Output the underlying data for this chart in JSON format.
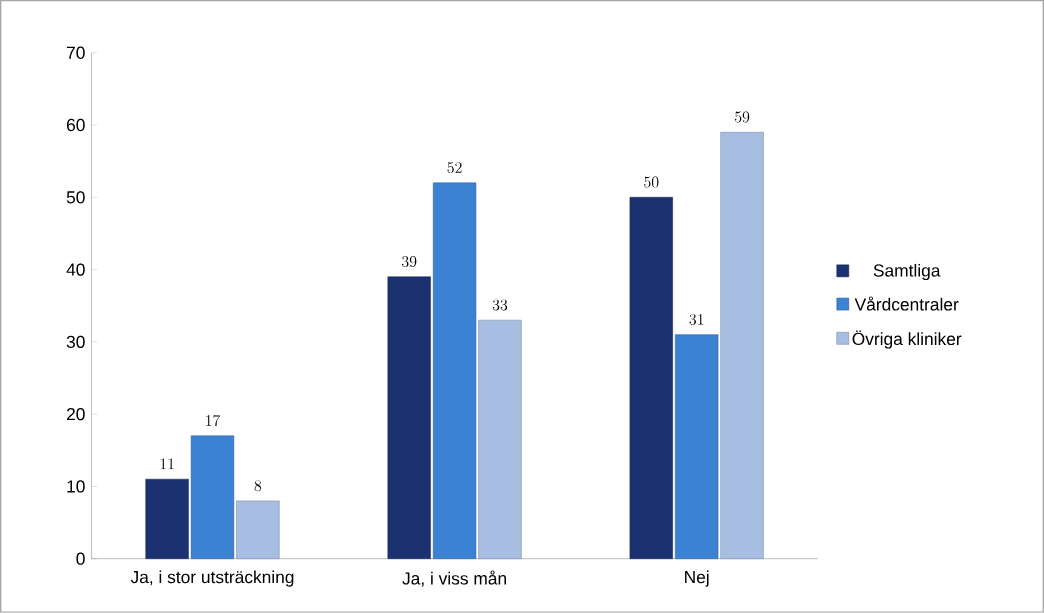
{
  "chart_data": {
    "type": "bar",
    "categories": [
      "Ja, i stor utsträckning",
      "Ja, i viss mån",
      "Nej"
    ],
    "series": [
      {
        "name": "Samtliga",
        "color": "#1c3270",
        "values": [
          11,
          39,
          50
        ]
      },
      {
        "name": "Vårdcentraler",
        "color": "#3c82d2",
        "values": [
          17,
          52,
          31
        ]
      },
      {
        "name": "Övriga kliniker",
        "color": "#a8bde2",
        "values": [
          8,
          33,
          59
        ]
      }
    ],
    "ylim": [
      0,
      70
    ],
    "yticks": [
      0,
      10,
      20,
      30,
      40,
      50,
      60,
      70
    ],
    "data_labels": true,
    "grid": false,
    "legend": "right"
  }
}
